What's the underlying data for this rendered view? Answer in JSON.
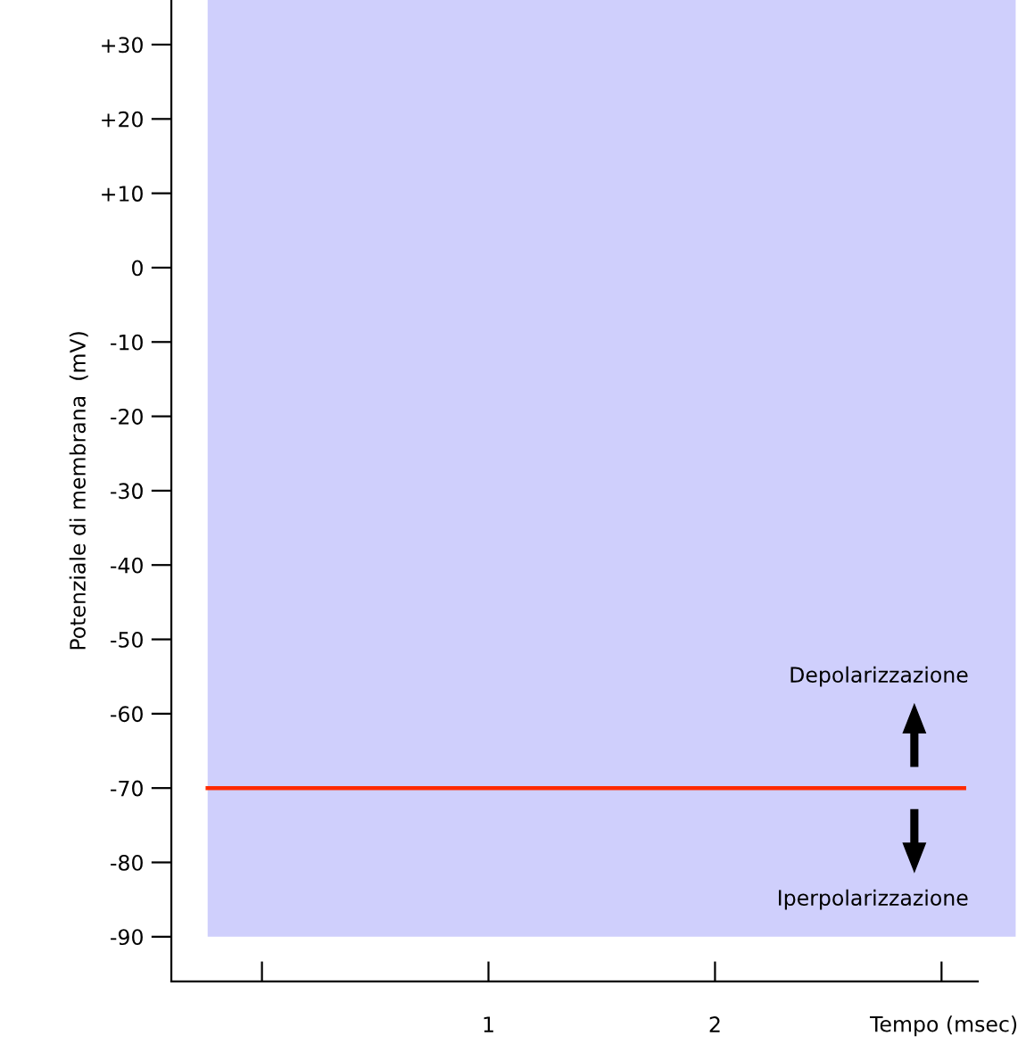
{
  "chart_data": {
    "type": "line",
    "xlabel": "Tempo (msec)",
    "ylabel": "Potenziale di membrana  (mV)",
    "x": [
      -0.24,
      3.1
    ],
    "series": [
      {
        "color": "#ff2a00",
        "values": [
          -70,
          -70
        ]
      }
    ],
    "xlim": [
      -0.4,
      3.16
    ],
    "ylim": [
      -96,
      36
    ],
    "xticks": [
      {
        "value": 0,
        "label": null
      },
      1,
      2,
      {
        "value": 3,
        "label": null
      }
    ],
    "yticks": [
      {
        "value": 30,
        "label": "+30"
      },
      {
        "value": 20,
        "label": "+20"
      },
      {
        "value": 10,
        "label": "+10"
      },
      0,
      -10,
      -20,
      -30,
      -40,
      -50,
      -60,
      -70,
      -80,
      -90
    ],
    "bands": [
      {
        "axis": "y",
        "from": -90,
        "to": 36,
        "color": "#cfcffc"
      }
    ],
    "annotations": [
      "Depolarizzazione",
      "Iperpolarizzazione"
    ],
    "grid": false,
    "legend": false,
    "marker": "none",
    "line_style": "solid"
  }
}
